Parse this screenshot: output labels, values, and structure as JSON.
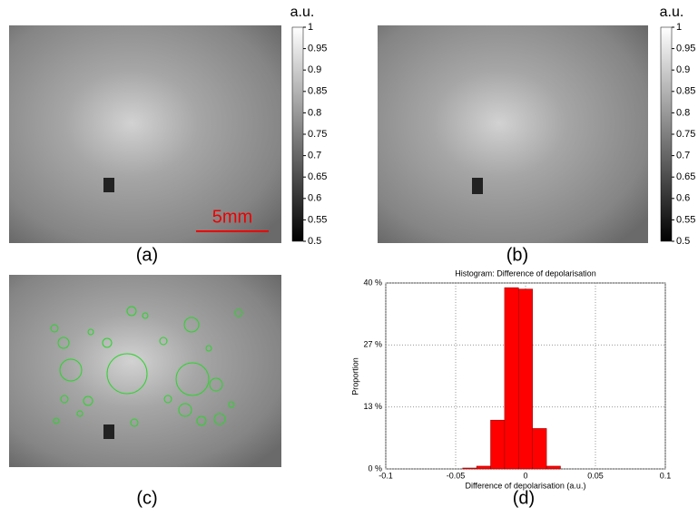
{
  "figure": {
    "panels": [
      "(a)",
      "(b)",
      "(c)",
      "(d)"
    ],
    "scale_bar": "5mm",
    "colorbar": {
      "label": "a.u.",
      "ylim": [
        0.5,
        1
      ],
      "yticks": [
        0.5,
        0.55,
        0.6,
        0.65,
        0.7,
        0.75,
        0.8,
        0.85,
        0.9,
        0.95,
        1
      ]
    }
  },
  "chart_data": {
    "type": "histogram",
    "title": "Histogram: Difference of depolarisation",
    "x_label": "Difference of depolarisation (a.u.)",
    "y_label": "Proportion",
    "bins": [
      -0.045,
      -0.035,
      -0.025,
      -0.015,
      -0.005,
      0.005,
      0.015,
      0.025
    ],
    "values": [
      0.2,
      0.6,
      10.5,
      39,
      38.7,
      8.7,
      0.6
    ],
    "color": "#ff0000",
    "xlim": [
      -0.1,
      0.1
    ],
    "xticks": [
      -0.1,
      -0.05,
      0,
      0.05,
      0.1
    ],
    "ylim": [
      0,
      40
    ],
    "yticks": [
      {
        "value": 0,
        "label": "0 %"
      },
      {
        "value": 13.33,
        "label": "13 %"
      },
      {
        "value": 26.67,
        "label": "27 %"
      },
      {
        "value": 40,
        "label": "40 %"
      }
    ],
    "grid": true
  }
}
